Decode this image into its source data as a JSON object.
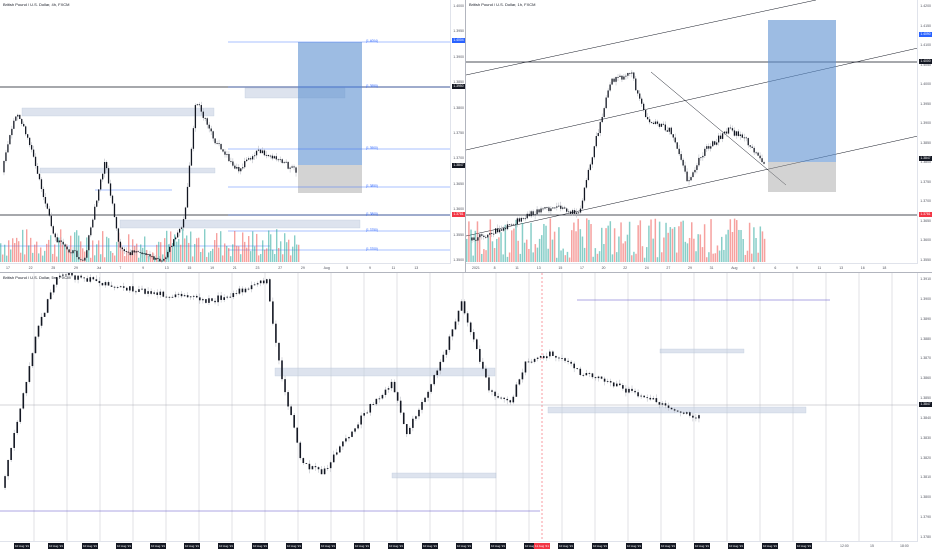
{
  "layout": "three-pane",
  "colors": {
    "background": "#ffffff",
    "candle": "#131722",
    "wick": "#b2b5be",
    "vol_up": "#26a69a",
    "vol_down": "#ef5350",
    "fib": "#2962ff",
    "position_target": "#5b8fd1",
    "position_stop": "#9e9e9e",
    "zone": "#c7d2e3",
    "hline": "#131722",
    "red_marker": "#f23645"
  },
  "panes": [
    {
      "id": "top-left",
      "title": "British Pound / U.S. Dollar, 4h, FXCM",
      "price_labels": [
        "1.4000",
        "1.3950",
        "1.3900",
        "1.3850",
        "1.3800",
        "1.3750",
        "1.3700",
        "1.3650",
        "1.3600",
        "1.3550",
        "1.3500"
      ],
      "current_price": "1.3847",
      "marked_prices": [
        "1.4004",
        "1.3950",
        "1.3800",
        "1.3781"
      ],
      "fib_labels": [
        "(1.4004)",
        "(1.3950)",
        "(1.3900)",
        "(1.3850)",
        "(1.3800)",
        "(1.3750)",
        "(1.3700)",
        "(1.3650)",
        "(1.3600)"
      ],
      "time_labels": [
        "17",
        "22",
        "25",
        "29",
        "Jul",
        "7",
        "9",
        "13",
        "15",
        "19",
        "21",
        "23",
        "27",
        "29",
        "Aug",
        "5",
        "9",
        "11",
        "13"
      ]
    },
    {
      "id": "top-right",
      "title": "British Pound / U.S. Dollar, 1h, FXCM",
      "price_labels": [
        "1.4200",
        "1.4150",
        "1.4100",
        "1.4050",
        "1.4000",
        "1.3950",
        "1.3900",
        "1.3850",
        "1.3800",
        "1.3750",
        "1.3700",
        "1.3650",
        "1.3600",
        "1.3550"
      ],
      "current_price": "1.3847",
      "marked_prices": [
        "1.4090",
        "1.4000",
        "1.3847",
        "1.3781"
      ],
      "time_labels": [
        "2021",
        "8",
        "11",
        "13",
        "15",
        "17",
        "20",
        "22",
        "24",
        "27",
        "29",
        "31",
        "Aug",
        "4",
        "6",
        "9",
        "11",
        "13",
        "16",
        "18"
      ]
    },
    {
      "id": "bottom",
      "title": "British Pound / U.S. Dollar, 5m, FXCM",
      "price_labels": [
        "1.3910",
        "1.3900",
        "1.3890",
        "1.3880",
        "1.3870",
        "1.3860",
        "1.3850",
        "1.3840",
        "1.3830",
        "1.3820",
        "1.3810",
        "1.3800",
        "1.3790",
        "1.3780"
      ],
      "current_price": "1.3847",
      "marked_prices": [
        "1.3847"
      ],
      "date_labels": [
        "10 Aug '21",
        "10 Aug '21",
        "10 Aug '21",
        "10 Aug '21",
        "10 Aug '21",
        "10 Aug '21",
        "10 Aug '21",
        "10 Aug '21",
        "10 Aug '21",
        "10 Aug '21",
        "10 Aug '21",
        "10 Aug '21",
        "10 Aug '21",
        "10 Aug '21",
        "10 Aug '21",
        "10 Aug '21",
        "10 Aug '21",
        "10 Aug '21",
        "10 Aug '21",
        "10 Aug '21",
        "10 Aug '21",
        "10 Aug '21",
        "10 Aug '21",
        "10 Aug '21"
      ],
      "highlighted_date": "11 Aug '21",
      "right_time_labels": [
        "12:00",
        "15",
        "18:00"
      ]
    }
  ]
}
